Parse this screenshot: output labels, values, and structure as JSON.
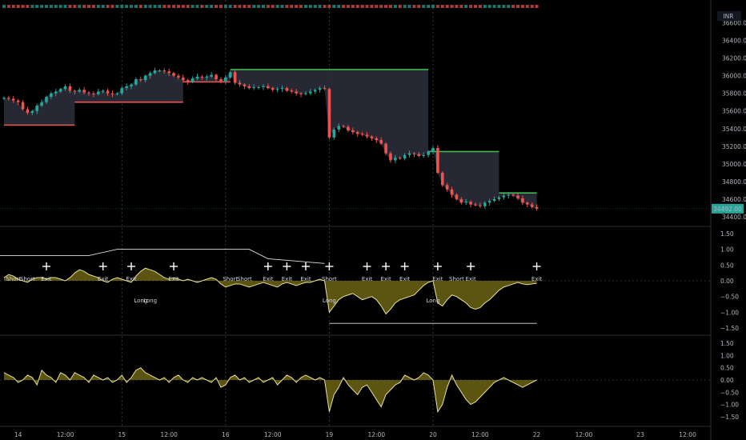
{
  "currency_label": "INR",
  "last_price_label": "34492.00",
  "colors": {
    "bull": "#26a69a",
    "bear": "#ef5350",
    "stop_long": "#f05454",
    "stop_short": "#3fb950",
    "cloud": "#2a2e39",
    "osc_fill": "#6b6414",
    "osc_line": "#e8e0a0",
    "axis": "#b2b5be",
    "grid": "#2a2a2a"
  },
  "chart_data": [
    {
      "type": "candlestick",
      "title": "",
      "ylim": [
        34300,
        36750
      ],
      "y_ticks": [
        36600,
        36400,
        36200,
        36000,
        35800,
        35600,
        35400,
        35200,
        35000,
        34800,
        34600,
        34400
      ],
      "y_tick_labels": [
        "36600.00",
        "36400.00",
        "36200.00",
        "36000.00",
        "35800.00",
        "35600.00",
        "35400.00",
        "35200.00",
        "35000.00",
        "34800.00",
        "34600.00",
        "34400.00"
      ],
      "x_tick_labels": [
        {
          "label": "14",
          "bar": 3
        },
        {
          "label": "12:00",
          "bar": 13
        },
        {
          "label": "15",
          "bar": 25
        },
        {
          "label": "12:00",
          "bar": 35
        },
        {
          "label": "16",
          "bar": 47
        },
        {
          "label": "12:00",
          "bar": 57
        },
        {
          "label": "19",
          "bar": 69
        },
        {
          "label": "12:00",
          "bar": 79
        },
        {
          "label": "20",
          "bar": 91
        },
        {
          "label": "12:00",
          "bar": 101
        },
        {
          "label": "22",
          "bar": 113
        },
        {
          "label": "12:00",
          "bar": 123
        },
        {
          "label": "23",
          "bar": 135
        },
        {
          "label": "12:00",
          "bar": 145
        }
      ],
      "session_breaks": [
        25,
        47,
        69,
        91
      ],
      "closes": [
        35750,
        35740,
        35720,
        35700,
        35620,
        35580,
        35600,
        35660,
        35700,
        35760,
        35800,
        35820,
        35850,
        35880,
        35830,
        35820,
        35840,
        35810,
        35800,
        35790,
        35820,
        35830,
        35800,
        35790,
        35800,
        35860,
        35880,
        35900,
        35960,
        35950,
        36000,
        36030,
        36060,
        36060,
        36050,
        36030,
        36000,
        35980,
        35950,
        35930,
        35970,
        35990,
        35980,
        35990,
        36010,
        35960,
        35940,
        35980,
        36040,
        35920,
        35900,
        35880,
        35860,
        35870,
        35870,
        35880,
        35860,
        35840,
        35850,
        35860,
        35830,
        35820,
        35800,
        35790,
        35800,
        35820,
        35840,
        35860,
        35850,
        35300,
        35390,
        35430,
        35420,
        35380,
        35360,
        35340,
        35330,
        35310,
        35290,
        35270,
        35230,
        35120,
        35040,
        35070,
        35060,
        35100,
        35120,
        35110,
        35090,
        35100,
        35140,
        35180,
        34900,
        34760,
        34710,
        34650,
        34600,
        34560,
        34570,
        34540,
        34530,
        34520,
        34560,
        34580,
        34600,
        34620,
        34640,
        34650,
        34640,
        34610,
        34560,
        34540,
        34510,
        34492
      ],
      "stop_line": [
        {
          "side": "long",
          "from_bar": 0,
          "to_bar": 15,
          "level": 35440
        },
        {
          "side": "long",
          "from_bar": 15,
          "to_bar": 38,
          "level": 35700
        },
        {
          "side": "long",
          "from_bar": 38,
          "to_bar": 48,
          "level": 35930
        },
        {
          "side": "short",
          "from_bar": 48,
          "to_bar": 90,
          "level": 36070
        },
        {
          "side": "short",
          "from_bar": 90,
          "to_bar": 105,
          "level": 35140
        },
        {
          "side": "short",
          "from_bar": 105,
          "to_bar": 113,
          "level": 34670
        }
      ]
    },
    {
      "type": "line",
      "title": "",
      "ylim": [
        -1.7,
        1.7
      ],
      "y_ticks": [
        1.5,
        1.0,
        0.5,
        0.0,
        -0.5,
        -1.0,
        -1.5
      ],
      "y_tick_labels": [
        "1.50",
        "1.00",
        "0.50",
        "0.00",
        "−0.50",
        "−1.00",
        "−1.50"
      ],
      "signals": [
        {
          "bar": 2,
          "text": "Short",
          "pos": "above",
          "cross": false
        },
        {
          "bar": 5,
          "text": "Short",
          "pos": "above",
          "cross": false
        },
        {
          "bar": 9,
          "text": "Exit",
          "pos": "above",
          "cross": true
        },
        {
          "bar": 21,
          "text": "Exit",
          "pos": "above",
          "cross": true
        },
        {
          "bar": 27,
          "text": "Exit",
          "pos": "above",
          "cross": true
        },
        {
          "bar": 29,
          "text": "Long",
          "pos": "below",
          "cross": false
        },
        {
          "bar": 31,
          "text": "Long",
          "pos": "below",
          "cross": false
        },
        {
          "bar": 36,
          "text": "Exit",
          "pos": "above",
          "cross": true
        },
        {
          "bar": 48,
          "text": "Short",
          "pos": "above",
          "cross": false
        },
        {
          "bar": 51,
          "text": "Short",
          "pos": "above",
          "cross": false
        },
        {
          "bar": 56,
          "text": "Exit",
          "pos": "above",
          "cross": true
        },
        {
          "bar": 60,
          "text": "Exit",
          "pos": "above",
          "cross": true
        },
        {
          "bar": 64,
          "text": "Exit",
          "pos": "above",
          "cross": true
        },
        {
          "bar": 69,
          "text": "Short",
          "pos": "above",
          "cross": true
        },
        {
          "bar": 69,
          "text": "Long",
          "pos": "below",
          "cross": false
        },
        {
          "bar": 77,
          "text": "Exit",
          "pos": "above",
          "cross": true
        },
        {
          "bar": 81,
          "text": "Exit",
          "pos": "above",
          "cross": true
        },
        {
          "bar": 85,
          "text": "Exit",
          "pos": "above",
          "cross": true
        },
        {
          "bar": 92,
          "text": "Exit",
          "pos": "above",
          "cross": true
        },
        {
          "bar": 91,
          "text": "Long",
          "pos": "below",
          "cross": false
        },
        {
          "bar": 96,
          "text": "Short",
          "pos": "above",
          "cross": false
        },
        {
          "bar": 99,
          "text": "Exit",
          "pos": "above",
          "cross": true
        },
        {
          "bar": 113,
          "text": "Exit",
          "pos": "above",
          "cross": true
        }
      ],
      "series": [
        {
          "values": [
            0.1,
            0.2,
            0.15,
            0.05,
            0.0,
            -0.05,
            0.05,
            0.1,
            0.1,
            0.05,
            0.1,
            0.1,
            0.05,
            0.0,
            0.1,
            0.25,
            0.35,
            0.3,
            0.2,
            0.15,
            0.1,
            0.0,
            -0.05,
            0.05,
            0.1,
            0.05,
            0.0,
            -0.05,
            0.15,
            0.3,
            0.4,
            0.35,
            0.3,
            0.2,
            0.1,
            0.05,
            0.1,
            0.05,
            0.0,
            0.05,
            0.0,
            -0.05,
            0.0,
            0.05,
            0.1,
            0.05,
            -0.1,
            -0.2,
            -0.15,
            -0.1,
            -0.1,
            -0.15,
            -0.2,
            -0.15,
            -0.1,
            -0.05,
            -0.1,
            -0.15,
            -0.2,
            -0.1,
            -0.05,
            -0.1,
            -0.15,
            -0.1,
            -0.05,
            -0.05,
            0.0,
            0.05,
            0.0,
            -1.0,
            -0.8,
            -0.6,
            -0.5,
            -0.45,
            -0.4,
            -0.5,
            -0.6,
            -0.55,
            -0.5,
            -0.6,
            -0.8,
            -1.05,
            -0.9,
            -0.7,
            -0.6,
            -0.55,
            -0.5,
            -0.45,
            -0.3,
            -0.15,
            -0.05,
            0.0,
            -0.7,
            -0.8,
            -0.6,
            -0.45,
            -0.5,
            -0.6,
            -0.7,
            -0.85,
            -0.9,
            -0.85,
            -0.7,
            -0.6,
            -0.45,
            -0.3,
            -0.2,
            -0.15,
            -0.1,
            -0.05,
            -0.1,
            -0.12,
            -0.1,
            -0.08
          ]
        }
      ]
    },
    {
      "type": "line",
      "title": "",
      "ylim": [
        -1.8,
        1.8
      ],
      "y_ticks": [
        1.5,
        1.0,
        0.5,
        0.0,
        -0.5,
        -1.0,
        -1.5
      ],
      "y_tick_labels": [
        "1.50",
        "1.00",
        "0.50",
        "0.00",
        "−0.50",
        "−1.00",
        "−1.50"
      ],
      "series": [
        {
          "values": [
            0.3,
            0.2,
            0.1,
            -0.1,
            0.0,
            0.2,
            0.1,
            -0.2,
            0.4,
            0.2,
            0.1,
            -0.1,
            0.3,
            0.2,
            0.0,
            0.3,
            0.2,
            0.1,
            -0.1,
            0.2,
            0.1,
            0.0,
            0.1,
            -0.1,
            0.0,
            0.2,
            -0.1,
            0.1,
            0.4,
            0.5,
            0.3,
            0.2,
            0.1,
            0.0,
            0.1,
            -0.1,
            0.1,
            0.2,
            0.0,
            -0.1,
            0.1,
            0.0,
            0.1,
            0.0,
            -0.1,
            0.1,
            -0.3,
            -0.2,
            0.1,
            0.2,
            0.0,
            0.1,
            -0.1,
            0.0,
            0.1,
            -0.1,
            0.0,
            0.1,
            -0.2,
            0.0,
            0.2,
            0.1,
            -0.1,
            0.1,
            0.2,
            0.1,
            0.0,
            0.1,
            0.0,
            -1.3,
            -0.6,
            -0.3,
            0.1,
            -0.2,
            -0.4,
            -0.6,
            -0.3,
            -0.2,
            -0.5,
            -0.8,
            -1.1,
            -0.6,
            -0.4,
            -0.2,
            -0.1,
            0.2,
            0.1,
            0.0,
            0.1,
            0.3,
            0.2,
            0.0,
            -1.3,
            -1.0,
            -0.3,
            0.2,
            -0.2,
            -0.5,
            -0.8,
            -1.0,
            -0.9,
            -0.7,
            -0.5,
            -0.3,
            -0.1,
            0.0,
            0.1,
            0.0,
            -0.1,
            -0.2,
            -0.3,
            -0.2,
            -0.1,
            0.0
          ]
        }
      ]
    }
  ]
}
